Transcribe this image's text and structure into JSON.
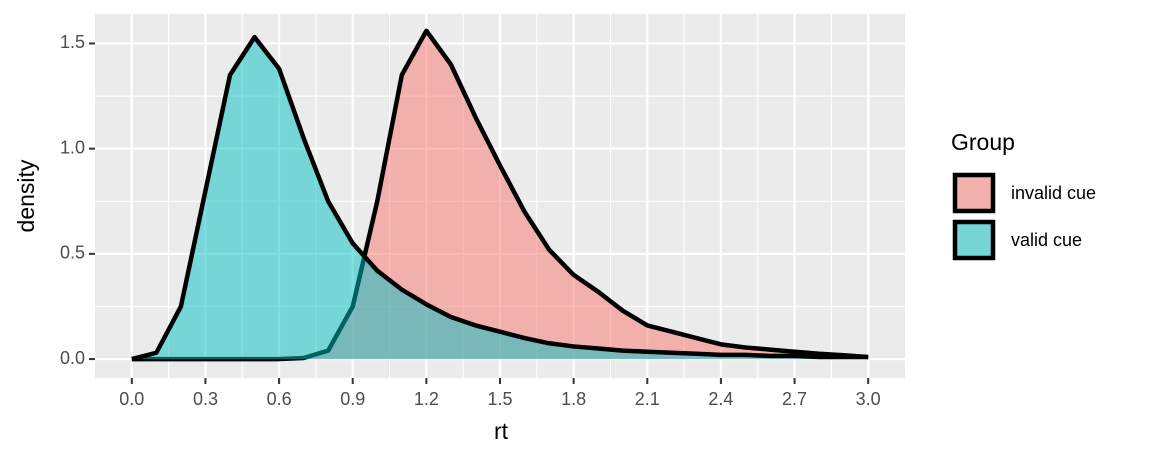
{
  "chart_data": {
    "type": "density",
    "x_label": "rt",
    "y_label": "density",
    "legend_title": "Group",
    "legend_position": "right",
    "grid": true,
    "minor_grid": true,
    "alpha": 0.5,
    "xlim": [
      -0.15,
      3.15
    ],
    "ylim": [
      -0.09,
      1.64
    ],
    "xticks": [
      {
        "value": 0,
        "label": "0.0"
      },
      {
        "value": 0.3,
        "label": "0.3"
      },
      {
        "value": 0.6,
        "label": "0.6"
      },
      {
        "value": 0.9,
        "label": "0.9"
      },
      {
        "value": 1.2,
        "label": "1.2"
      },
      {
        "value": 1.5,
        "label": "1.5"
      },
      {
        "value": 1.8,
        "label": "1.8"
      },
      {
        "value": 2.1,
        "label": "2.1"
      },
      {
        "value": 2.4,
        "label": "2.4"
      },
      {
        "value": 2.7,
        "label": "2.7"
      },
      {
        "value": 3,
        "label": "3.0"
      }
    ],
    "yticks": [
      {
        "value": 0,
        "label": "0.0"
      },
      {
        "value": 0.5,
        "label": "0.5"
      },
      {
        "value": 1,
        "label": "1.0"
      },
      {
        "value": 1.5,
        "label": "1.5"
      }
    ],
    "x": [
      0,
      0.1,
      0.2,
      0.3,
      0.4,
      0.5,
      0.6,
      0.7,
      0.8,
      0.9,
      1.0,
      1.1,
      1.2,
      1.3,
      1.4,
      1.5,
      1.6,
      1.7,
      1.8,
      1.9,
      2.0,
      2.1,
      2.2,
      2.3,
      2.4,
      2.5,
      2.6,
      2.7,
      2.8,
      2.9,
      3.0
    ],
    "series": [
      {
        "name": "invalid cue",
        "color": "#F8766D",
        "values": [
          0,
          0,
          0,
          0,
          0,
          0,
          0,
          0.005,
          0.04,
          0.25,
          0.75,
          1.35,
          1.56,
          1.4,
          1.15,
          0.92,
          0.7,
          0.52,
          0.4,
          0.32,
          0.23,
          0.16,
          0.13,
          0.1,
          0.07,
          0.055,
          0.045,
          0.035,
          0.025,
          0.018,
          0.01
        ]
      },
      {
        "name": "valid cue",
        "color": "#00BFC4",
        "values": [
          0,
          0.03,
          0.25,
          0.8,
          1.35,
          1.53,
          1.38,
          1.05,
          0.75,
          0.55,
          0.42,
          0.33,
          0.26,
          0.2,
          0.16,
          0.13,
          0.1,
          0.075,
          0.06,
          0.05,
          0.04,
          0.035,
          0.03,
          0.025,
          0.02,
          0.02,
          0.015,
          0.015,
          0.01,
          0.01,
          0.01
        ]
      }
    ]
  }
}
